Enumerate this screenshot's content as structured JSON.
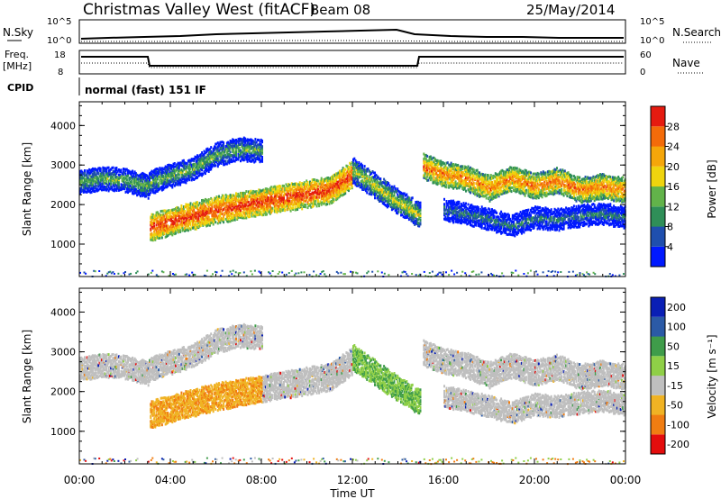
{
  "header": {
    "station": "Christmas Valley West (fitACF)",
    "beam": "Beam 08",
    "date": "25/May/2014"
  },
  "panels": {
    "nsky": {
      "left_label": "N.Sky",
      "right_label": "N.Search",
      "left_ticks": [
        "10^5",
        "10^0"
      ],
      "right_ticks": [
        "10^5",
        "10^0"
      ]
    },
    "freq": {
      "left_label_1": "Freq.",
      "left_label_2": "[MHz]",
      "right_label": "Nave",
      "left_ticks": [
        "18",
        "8"
      ],
      "right_ticks": [
        "60",
        "0"
      ]
    },
    "cpid": {
      "label": "CPID",
      "text": "normal (fast) 151 IF"
    }
  },
  "colors": {
    "power": [
      "#0019ff",
      "#1f4fae",
      "#2f8f58",
      "#62b34a",
      "#efd40e",
      "#f5a60a",
      "#f36b0a",
      "#e51b10"
    ],
    "velocity": [
      "#e40d0d",
      "#f07d12",
      "#f0b324",
      "#bfbfbf",
      "#8fcf47",
      "#3f9c4a",
      "#2b5aa6",
      "#0a1fb5"
    ],
    "ground_scatter": "#bfbfbf"
  },
  "chart_data": [
    {
      "type": "heatmap",
      "name_key": "power",
      "xlabel": "",
      "ylabel": "Slant Range [km]",
      "x_ticks": [
        "00:00",
        "04:00",
        "08:00",
        "12:00",
        "16:00",
        "20:00",
        "00:00"
      ],
      "xlim_hours": [
        0,
        24
      ],
      "y_ticks": [
        1000,
        2000,
        3000,
        4000
      ],
      "ylim_km": [
        180,
        4600
      ],
      "colorbar": {
        "label": "Power [dB]",
        "ticks": [
          4,
          8,
          12,
          16,
          20,
          24,
          28
        ]
      },
      "traces_km": [
        {
          "x_hours": [
            0,
            1,
            2,
            3,
            3.1,
            5,
            6,
            7,
            8
          ],
          "y": [
            2600,
            2700,
            2650,
            2500,
            2600,
            2950,
            3300,
            3450,
            3400
          ],
          "band": 280,
          "level": 3
        },
        {
          "x_hours": [
            3.1,
            4,
            5,
            6,
            7,
            8,
            9,
            10,
            11,
            12
          ],
          "y": [
            1450,
            1600,
            1750,
            1900,
            2000,
            2100,
            2200,
            2300,
            2400,
            2800
          ],
          "band": 320,
          "level": 7
        },
        {
          "x_hours": [
            12,
            13,
            14,
            15
          ],
          "y": [
            2900,
            2500,
            2100,
            1750
          ],
          "band": 300,
          "level": 4
        },
        {
          "x_hours": [
            15.1,
            16,
            17,
            18,
            19,
            20,
            21,
            22,
            23,
            24
          ],
          "y": [
            3000,
            2800,
            2700,
            2450,
            2700,
            2500,
            2650,
            2400,
            2500,
            2400
          ],
          "band": 300,
          "level": 6
        },
        {
          "x_hours": [
            16,
            17,
            18,
            19,
            20,
            21,
            22,
            23,
            24
          ],
          "y": [
            1900,
            1800,
            1650,
            1500,
            1700,
            1650,
            1750,
            1800,
            1700
          ],
          "band": 250,
          "level": 2
        }
      ]
    },
    {
      "type": "heatmap",
      "name_key": "velocity",
      "xlabel": "Time UT",
      "ylabel": "Slant Range [km]",
      "x_ticks": [
        "00:00",
        "04:00",
        "08:00",
        "12:00",
        "16:00",
        "20:00",
        "00:00"
      ],
      "xlim_hours": [
        0,
        24
      ],
      "y_ticks": [
        1000,
        2000,
        3000,
        4000
      ],
      "ylim_km": [
        180,
        4600
      ],
      "colorbar": {
        "label": "Velocity [m s⁻¹]",
        "ticks": [
          200,
          100,
          50,
          15,
          -15,
          -50,
          -100,
          -200
        ]
      }
    }
  ]
}
